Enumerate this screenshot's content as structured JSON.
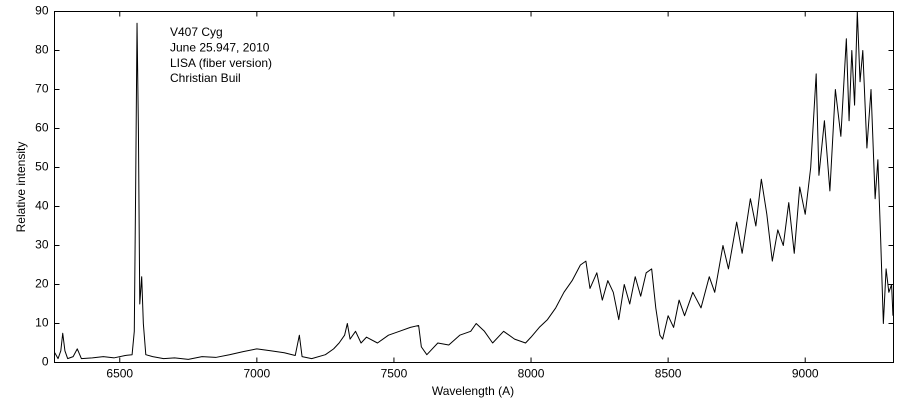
{
  "chart_data": {
    "type": "line",
    "annotations": [
      "V407 Cyg",
      "June 25.947, 2010",
      "LISA (fiber version)",
      "Christian Buil"
    ],
    "xlabel": "Wavelength (A)",
    "ylabel": "Relative intensity",
    "xlim": [
      6262,
      9322
    ],
    "ylim": [
      0,
      90
    ],
    "xticks": [
      6500,
      7000,
      7500,
      8000,
      8500,
      9000
    ],
    "yticks": [
      0,
      10,
      20,
      30,
      40,
      50,
      60,
      70,
      80,
      90
    ],
    "grid": false,
    "series": [
      {
        "color": "#000000",
        "x": [
          6263,
          6275,
          6285,
          6292,
          6300,
          6310,
          6330,
          6345,
          6360,
          6400,
          6440,
          6480,
          6520,
          6545,
          6553,
          6558,
          6563,
          6568,
          6573,
          6580,
          6586,
          6595,
          6620,
          6660,
          6700,
          6750,
          6800,
          6850,
          6900,
          6950,
          7000,
          7050,
          7100,
          7140,
          7155,
          7165,
          7200,
          7250,
          7280,
          7300,
          7320,
          7330,
          7340,
          7360,
          7380,
          7400,
          7440,
          7480,
          7520,
          7560,
          7590,
          7600,
          7620,
          7660,
          7700,
          7740,
          7780,
          7800,
          7830,
          7860,
          7900,
          7940,
          7980,
          8000,
          8030,
          8060,
          8090,
          8120,
          8150,
          8180,
          8200,
          8215,
          8240,
          8260,
          8280,
          8300,
          8320,
          8340,
          8360,
          8380,
          8400,
          8420,
          8440,
          8455,
          8470,
          8480,
          8500,
          8520,
          8540,
          8560,
          8590,
          8620,
          8650,
          8670,
          8700,
          8720,
          8750,
          8770,
          8800,
          8820,
          8840,
          8860,
          8880,
          8900,
          8920,
          8940,
          8960,
          8980,
          9000,
          9020,
          9040,
          9050,
          9070,
          9090,
          9110,
          9130,
          9150,
          9160,
          9170,
          9180,
          9190,
          9200,
          9210,
          9225,
          9240,
          9255,
          9265,
          9275,
          9285,
          9295,
          9305,
          9315,
          9320
        ],
        "values": [
          2.5,
          1,
          3,
          7.5,
          3,
          1,
          1.5,
          3.5,
          1,
          1.2,
          1.5,
          1.2,
          1.8,
          2,
          8,
          45,
          87,
          60,
          15,
          22,
          10,
          2,
          1.5,
          1,
          1.2,
          0.8,
          1.5,
          1.3,
          2,
          2.8,
          3.5,
          3,
          2.5,
          1.8,
          7,
          1.5,
          1,
          2,
          3.5,
          5,
          7,
          10,
          6,
          8,
          5,
          6.5,
          5,
          7,
          8,
          9,
          9.5,
          4,
          2,
          5,
          4.5,
          7,
          8,
          10,
          8,
          5,
          8,
          6,
          5,
          6.5,
          9,
          11,
          14,
          18,
          21,
          25,
          26,
          19,
          23,
          16,
          21,
          18,
          11,
          20,
          15,
          22,
          17,
          23,
          24,
          14,
          7,
          6,
          12,
          9,
          16,
          12,
          18,
          14,
          22,
          18,
          30,
          24,
          36,
          28,
          42,
          35,
          47,
          38,
          26,
          34,
          30,
          41,
          28,
          45,
          38,
          50,
          74,
          48,
          62,
          44,
          70,
          58,
          83,
          62,
          80,
          66,
          90,
          72,
          80,
          55,
          70,
          42,
          52,
          32,
          10,
          24,
          18,
          20,
          12
        ]
      }
    ]
  }
}
